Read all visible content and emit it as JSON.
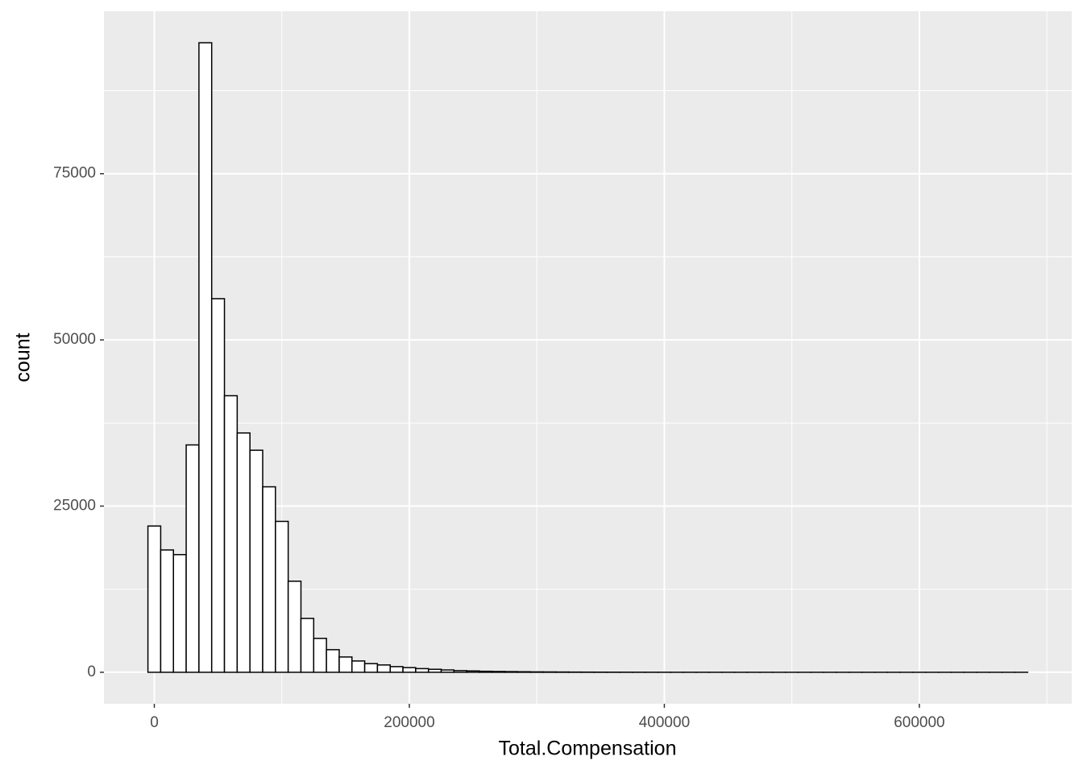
{
  "chart_data": {
    "type": "histogram",
    "x_label": "Total.Compensation",
    "y_label": "count",
    "bins": [
      -5000,
      5000,
      15000,
      25000,
      35000,
      45000,
      55000,
      65000,
      75000,
      85000,
      95000,
      105000,
      115000,
      125000,
      135000,
      145000,
      155000,
      165000,
      175000,
      185000,
      195000,
      205000,
      215000,
      225000,
      235000,
      245000,
      255000,
      265000,
      275000,
      285000,
      295000,
      305000,
      315000,
      325000,
      335000,
      345000,
      355000,
      365000,
      375000,
      385000,
      395000,
      405000,
      415000,
      425000,
      435000,
      445000,
      455000,
      465000,
      475000,
      485000,
      495000,
      505000,
      515000,
      525000,
      535000,
      545000,
      555000,
      565000,
      575000,
      585000,
      595000,
      605000,
      615000,
      625000,
      635000,
      645000,
      655000,
      665000,
      675000,
      685000
    ],
    "values": [
      22000,
      18400,
      17700,
      34200,
      94700,
      56200,
      41600,
      36000,
      33400,
      27900,
      22700,
      13700,
      8100,
      5100,
      3400,
      2300,
      1700,
      1300,
      1100,
      850,
      700,
      550,
      450,
      350,
      250,
      200,
      150,
      120,
      100,
      80,
      60,
      50,
      40,
      30,
      25,
      20,
      15,
      12,
      10,
      8,
      6,
      5,
      4,
      4,
      3,
      3,
      2,
      2,
      2,
      1,
      1,
      1,
      1,
      1,
      1,
      1,
      1,
      1,
      1,
      1,
      1,
      1,
      1,
      1,
      1,
      1,
      1,
      1,
      1
    ],
    "color": "#ffffff",
    "edge_color": "#000000",
    "xlim": [
      -39500,
      719500
    ],
    "xticks": [
      0,
      200000,
      400000,
      600000
    ],
    "xminor": [
      100000,
      300000,
      500000,
      700000
    ],
    "ylim": [
      -4735,
      99435
    ],
    "yticks": [
      0,
      25000,
      50000,
      75000
    ],
    "yminor": [
      12500,
      37500,
      62500,
      87500
    ],
    "grid": true
  }
}
